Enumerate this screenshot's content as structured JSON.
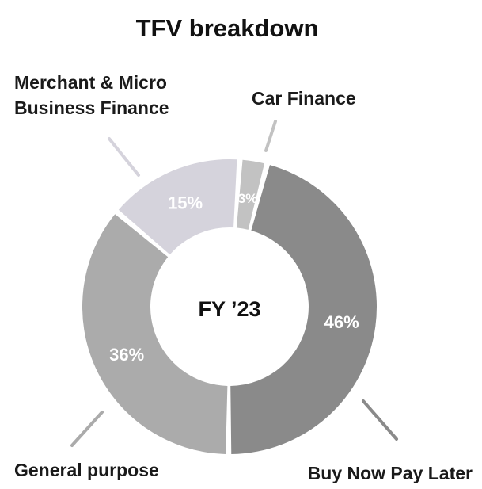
{
  "chart_data": {
    "type": "pie",
    "title": "TFV breakdown",
    "center_label": "FY ’23",
    "categories": [
      "Car Finance",
      "Buy Now Pay Later",
      "General purpose",
      "Merchant & Micro Business Finance"
    ],
    "values": [
      3,
      46,
      36,
      15
    ],
    "value_labels": [
      "3%",
      "46%",
      "36%",
      "15%"
    ],
    "category_labels": [
      [
        "Car Finance"
      ],
      [
        "Buy Now Pay Later"
      ],
      [
        "General purpose"
      ],
      [
        "Merchant & Micro",
        "Business Finance"
      ]
    ],
    "colors": [
      "#c2c2c2",
      "#8a8a8a",
      "#ababab",
      "#d5d3dc"
    ],
    "legend": "none",
    "grid": false
  }
}
